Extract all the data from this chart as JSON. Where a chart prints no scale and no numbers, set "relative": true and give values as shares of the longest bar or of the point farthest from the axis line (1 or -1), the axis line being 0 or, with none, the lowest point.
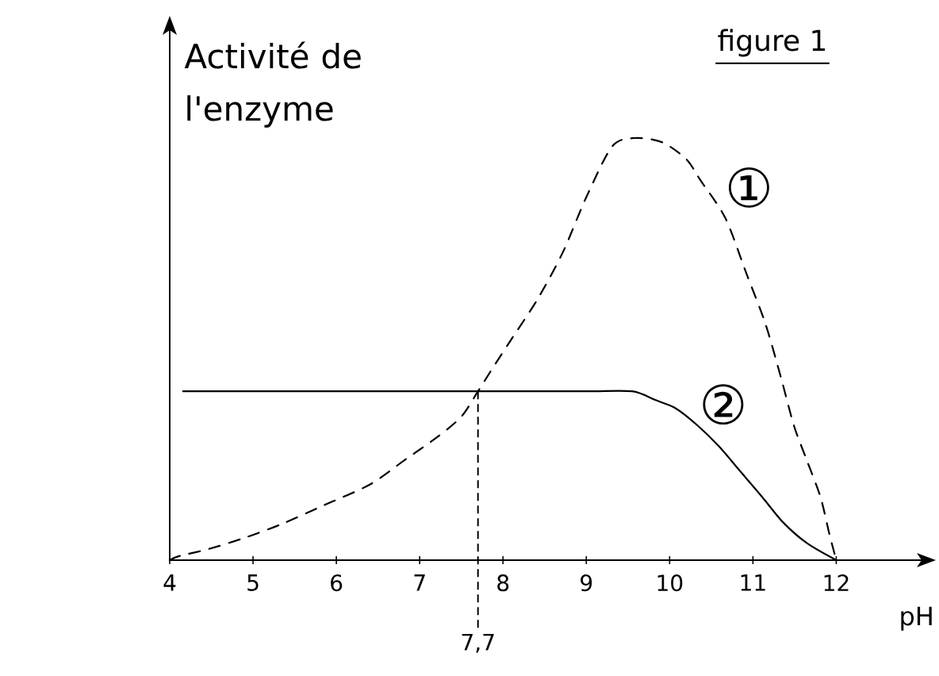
{
  "chart_data": {
    "type": "line",
    "title": "figure 1",
    "xlabel": "pH",
    "ylabel": "Activité de l'enzyme",
    "relative": true,
    "xlim": [
      4,
      13.1
    ],
    "xticks": [
      4,
      5,
      6,
      7,
      8,
      9,
      10,
      11,
      12
    ],
    "annotations": [
      {
        "text": "7,7",
        "x": 7.7,
        "y": 0.4
      }
    ],
    "series": [
      {
        "name": "①",
        "color": "#000000",
        "line_style": "dashed",
        "x": [
          4.0,
          4.12,
          4.46,
          4.9,
          5.35,
          5.85,
          6.41,
          6.84,
          7.2,
          7.5,
          7.7,
          7.86,
          8.09,
          8.42,
          8.72,
          9.0,
          9.31,
          9.58,
          9.91,
          10.2,
          10.37,
          10.67,
          10.92,
          11.15,
          11.34,
          11.49,
          11.64,
          11.81,
          11.92,
          12.0
        ],
        "values": [
          0,
          0.01,
          0.026,
          0.053,
          0.086,
          0.13,
          0.18,
          0.24,
          0.29,
          0.34,
          0.4,
          0.45,
          0.52,
          0.62,
          0.73,
          0.86,
          0.98,
          1,
          0.99,
          0.95,
          0.9,
          0.81,
          0.68,
          0.56,
          0.43,
          0.32,
          0.24,
          0.15,
          0.06,
          0
        ]
      },
      {
        "name": "②",
        "color": "#000000",
        "line_style": "solid",
        "x": [
          4.16,
          6.0,
          8.0,
          9.0,
          9.55,
          9.82,
          10.07,
          10.33,
          10.59,
          10.85,
          11.11,
          11.36,
          11.65,
          12.0
        ],
        "values": [
          0.4,
          0.4,
          0.4,
          0.4,
          0.4,
          0.38,
          0.36,
          0.32,
          0.27,
          0.21,
          0.15,
          0.09,
          0.04,
          0
        ]
      }
    ]
  }
}
